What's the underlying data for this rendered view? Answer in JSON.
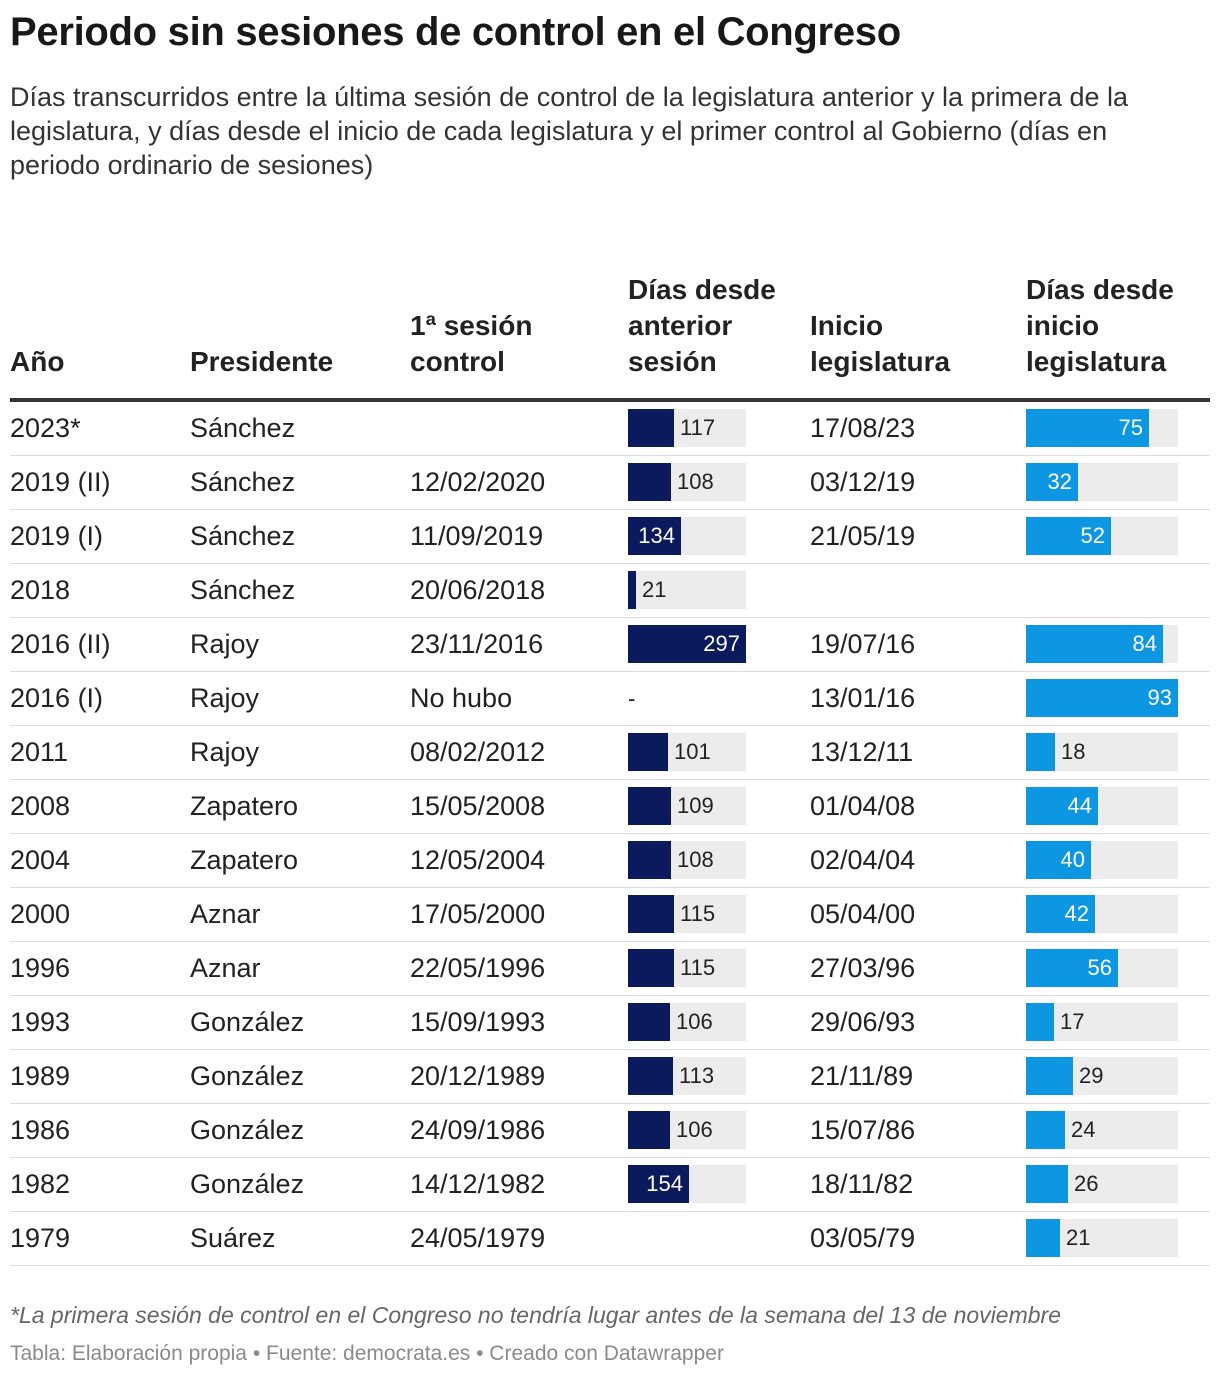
{
  "title": "Periodo sin sesiones de control en el Congreso",
  "subtitle": "Días transcurridos entre la última sesión de control de la legislatura anterior y la primera de la legislatura, y días desde el inicio de cada legislatura y el primer control al Gobierno (días en periodo ordinario de sesiones)",
  "note": "*La primera sesión de control en el Congreso no tendría lugar antes de la semana del 13 de noviembre",
  "source": "Tabla: Elaboración propia • Fuente: democrata.es • Creado con Datawrapper",
  "colors": {
    "dark_bar": "#0b1a5c",
    "light_bar": "#0d96e2",
    "bar_bg": "#ececec"
  },
  "chart_data": {
    "type": "table",
    "columns": [
      "Año",
      "Presidente",
      "1ª sesión control",
      "Días desde anterior sesión",
      "Inicio legislatura",
      "Días desde inicio legislatura"
    ],
    "scales": {
      "dias_anterior_max": 297,
      "dias_inicio_max": 93
    },
    "rows": [
      {
        "anio": "2023*",
        "presidente": "Sánchez",
        "sesion": "",
        "dias_anterior": 117,
        "inicio": "17/08/23",
        "dias_inicio": 75
      },
      {
        "anio": "2019 (II)",
        "presidente": "Sánchez",
        "sesion": "12/02/2020",
        "dias_anterior": 108,
        "inicio": "03/12/19",
        "dias_inicio": 32
      },
      {
        "anio": "2019 (I)",
        "presidente": "Sánchez",
        "sesion": "11/09/2019",
        "dias_anterior": 134,
        "inicio": "21/05/19",
        "dias_inicio": 52
      },
      {
        "anio": "2018",
        "presidente": "Sánchez",
        "sesion": "20/06/2018",
        "dias_anterior": 21,
        "inicio": "",
        "dias_inicio": null
      },
      {
        "anio": "2016 (II)",
        "presidente": "Rajoy",
        "sesion": "23/11/2016",
        "dias_anterior": 297,
        "inicio": "19/07/16",
        "dias_inicio": 84
      },
      {
        "anio": "2016 (I)",
        "presidente": "Rajoy",
        "sesion": "No hubo",
        "dias_anterior": "-",
        "inicio": "13/01/16",
        "dias_inicio": 93
      },
      {
        "anio": "2011",
        "presidente": "Rajoy",
        "sesion": "08/02/2012",
        "dias_anterior": 101,
        "inicio": "13/12/11",
        "dias_inicio": 18
      },
      {
        "anio": "2008",
        "presidente": "Zapatero",
        "sesion": "15/05/2008",
        "dias_anterior": 109,
        "inicio": "01/04/08",
        "dias_inicio": 44
      },
      {
        "anio": "2004",
        "presidente": "Zapatero",
        "sesion": "12/05/2004",
        "dias_anterior": 108,
        "inicio": "02/04/04",
        "dias_inicio": 40
      },
      {
        "anio": "2000",
        "presidente": "Aznar",
        "sesion": "17/05/2000",
        "dias_anterior": 115,
        "inicio": "05/04/00",
        "dias_inicio": 42
      },
      {
        "anio": "1996",
        "presidente": "Aznar",
        "sesion": "22/05/1996",
        "dias_anterior": 115,
        "inicio": "27/03/96",
        "dias_inicio": 56
      },
      {
        "anio": "1993",
        "presidente": "González",
        "sesion": "15/09/1993",
        "dias_anterior": 106,
        "inicio": "29/06/93",
        "dias_inicio": 17
      },
      {
        "anio": "1989",
        "presidente": "González",
        "sesion": "20/12/1989",
        "dias_anterior": 113,
        "inicio": "21/11/89",
        "dias_inicio": 29
      },
      {
        "anio": "1986",
        "presidente": "González",
        "sesion": "24/09/1986",
        "dias_anterior": 106,
        "inicio": "15/07/86",
        "dias_inicio": 24
      },
      {
        "anio": "1982",
        "presidente": "González",
        "sesion": "14/12/1982",
        "dias_anterior": 154,
        "inicio": "18/11/82",
        "dias_inicio": 26
      },
      {
        "anio": "1979",
        "presidente": "Suárez",
        "sesion": "24/05/1979",
        "dias_anterior": null,
        "inicio": "03/05/79",
        "dias_inicio": 21
      }
    ]
  }
}
